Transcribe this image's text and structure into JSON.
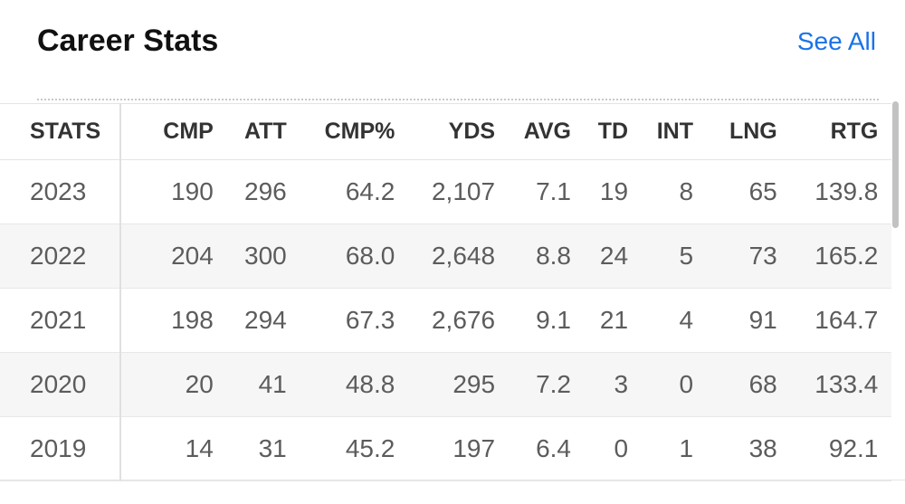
{
  "header": {
    "title": "Career Stats",
    "see_all_label": "See All"
  },
  "table": {
    "columns": [
      "STATS",
      "CMP",
      "ATT",
      "CMP%",
      "YDS",
      "AVG",
      "TD",
      "INT",
      "LNG",
      "RTG"
    ],
    "rows": [
      [
        "2023",
        "190",
        "296",
        "64.2",
        "2,107",
        "7.1",
        "19",
        "8",
        "65",
        "139.8"
      ],
      [
        "2022",
        "204",
        "300",
        "68.0",
        "2,648",
        "8.8",
        "24",
        "5",
        "73",
        "165.2"
      ],
      [
        "2021",
        "198",
        "294",
        "67.3",
        "2,676",
        "9.1",
        "21",
        "4",
        "91",
        "164.7"
      ],
      [
        "2020",
        "20",
        "41",
        "48.8",
        "295",
        "7.2",
        "3",
        "0",
        "68",
        "133.4"
      ],
      [
        "2019",
        "14",
        "31",
        "45.2",
        "197",
        "6.4",
        "0",
        "1",
        "38",
        "92.1"
      ]
    ]
  },
  "colors": {
    "accent": "#1a73e8",
    "row_alt": "#f6f6f7",
    "text_muted": "#5c5c5c"
  }
}
